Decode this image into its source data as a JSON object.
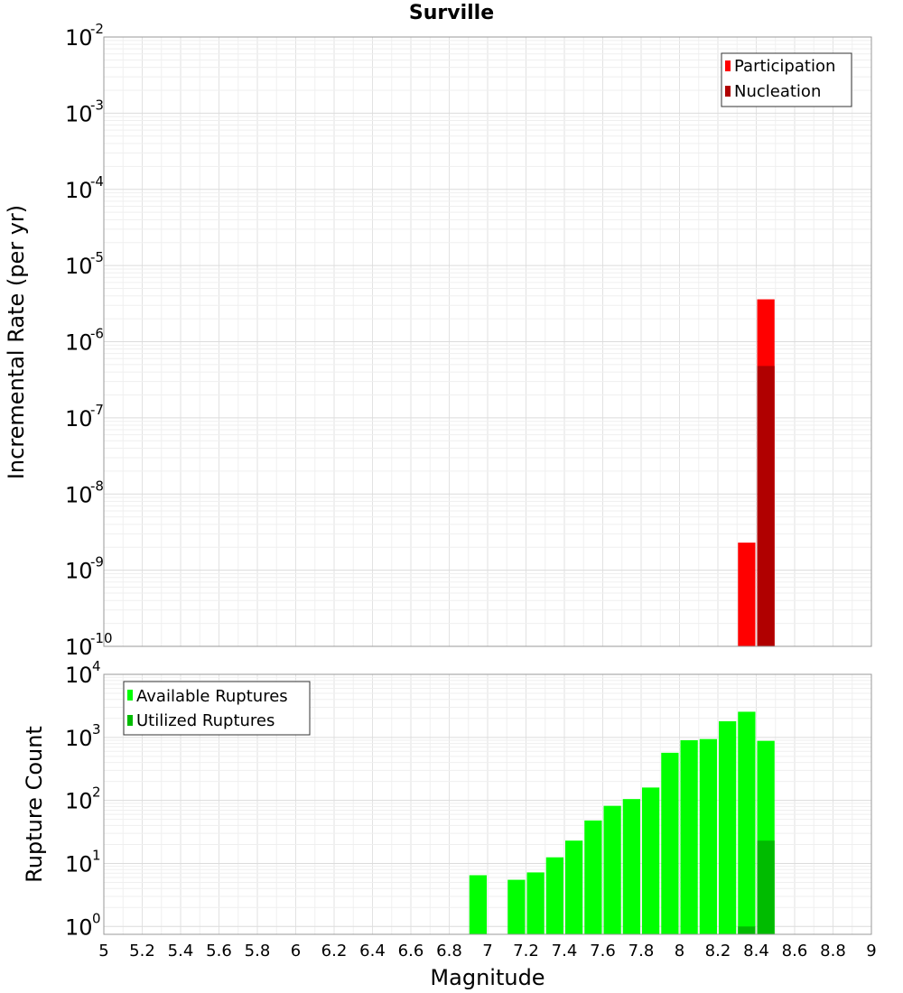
{
  "chart_data": [
    {
      "type": "bar",
      "title": "Surville",
      "ylabel": "Incremental Rate (per yr)",
      "yscale": "log",
      "ylim_exp": [
        -10,
        -2
      ],
      "xlim": [
        5,
        9
      ],
      "grid": true,
      "legend": {
        "placement": "top-right",
        "entries": [
          "Participation",
          "Nucleation"
        ]
      },
      "series": [
        {
          "name": "Participation",
          "color": "#ff0000",
          "points": [
            {
              "x": 8.35,
              "y": 2.3e-09
            },
            {
              "x": 8.45,
              "y": 3.6e-06
            }
          ]
        },
        {
          "name": "Nucleation",
          "color": "#b00000",
          "points": [
            {
              "x": 8.45,
              "y": 4.8e-07
            }
          ]
        }
      ]
    },
    {
      "type": "bar",
      "ylabel": "Rupture Count",
      "xlabel": "Magnitude",
      "yscale": "log",
      "ylim_exp": [
        0,
        4
      ],
      "ylim_min": 0.75,
      "xlim": [
        5,
        9
      ],
      "xticks": [
        "5",
        "5.2",
        "5.4",
        "5.6",
        "5.8",
        "6",
        "6.2",
        "6.4",
        "6.6",
        "6.8",
        "7",
        "7.2",
        "7.4",
        "7.6",
        "7.8",
        "8",
        "8.2",
        "8.4",
        "8.6",
        "8.8",
        "9"
      ],
      "grid": true,
      "legend": {
        "placement": "top-left",
        "entries": [
          "Available Ruptures",
          "Utilized Ruptures"
        ]
      },
      "series": [
        {
          "name": "Available Ruptures",
          "color": "#00ff00",
          "points": [
            {
              "x": 6.95,
              "y": 6.5
            },
            {
              "x": 7.15,
              "y": 5.5
            },
            {
              "x": 7.25,
              "y": 7.2
            },
            {
              "x": 7.35,
              "y": 12.5
            },
            {
              "x": 7.45,
              "y": 23
            },
            {
              "x": 7.55,
              "y": 48
            },
            {
              "x": 7.65,
              "y": 82
            },
            {
              "x": 7.75,
              "y": 105
            },
            {
              "x": 7.85,
              "y": 160
            },
            {
              "x": 7.95,
              "y": 570
            },
            {
              "x": 8.05,
              "y": 900
            },
            {
              "x": 8.15,
              "y": 940
            },
            {
              "x": 8.25,
              "y": 1800
            },
            {
              "x": 8.35,
              "y": 2550
            },
            {
              "x": 8.45,
              "y": 880
            }
          ]
        },
        {
          "name": "Utilized Ruptures",
          "color": "#00bb00",
          "points": [
            {
              "x": 8.35,
              "y": 1
            },
            {
              "x": 8.45,
              "y": 23
            }
          ]
        }
      ]
    }
  ]
}
